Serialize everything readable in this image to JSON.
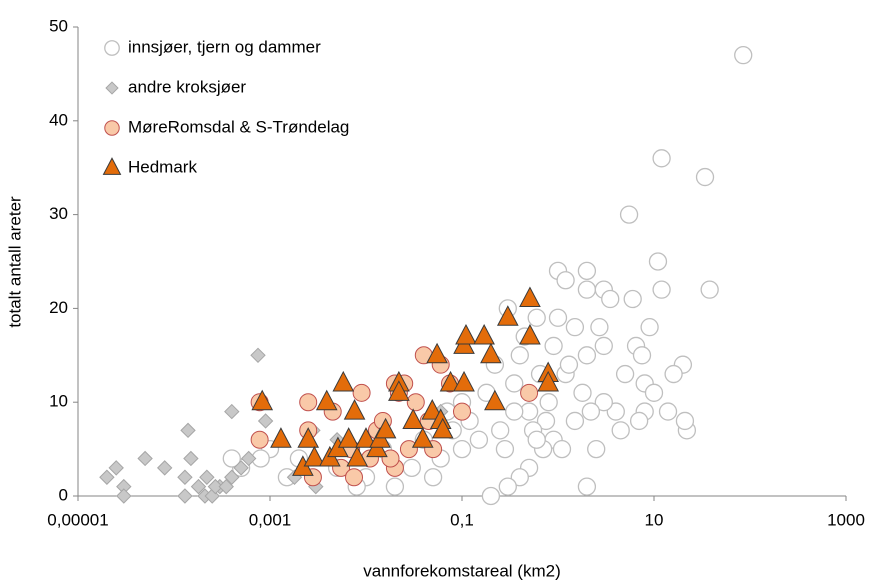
{
  "chart_data": {
    "type": "scatter",
    "xlabel": "vannforekomstareal (km2)",
    "ylabel": "totalt antall areter",
    "xscale": "log",
    "xlim": [
      1e-05,
      1000
    ],
    "xticks": [
      {
        "value": 1e-05,
        "label": "0,00001"
      },
      {
        "value": 0.001,
        "label": "0,001"
      },
      {
        "value": 0.1,
        "label": "0,1"
      },
      10,
      1000
    ],
    "ylim": [
      0,
      50
    ],
    "yticks": [
      0,
      10,
      20,
      30,
      40,
      50
    ],
    "legend": "upper left",
    "series": [
      {
        "name": "innsjøer, tjern og dammer",
        "marker": "circle-open",
        "color": "#bfbfbf",
        "x": [
          85,
          12,
          34,
          38,
          5.5,
          11,
          12,
          20,
          22,
          21,
          16,
          14,
          2,
          2,
          1,
          1.2,
          3,
          3.5,
          2.7,
          6,
          6.5,
          7.5,
          8,
          9,
          4,
          5,
          3,
          2.5,
          2,
          3,
          2,
          1.5,
          1,
          0.6,
          0.4,
          0.3,
          0.5,
          0.8,
          1.2,
          1.5,
          0.9,
          0.7,
          0.5,
          0.4,
          0.3,
          0.2,
          0.25,
          0.15,
          0.12,
          0.1,
          0.08,
          0.06,
          0.05,
          0.04,
          0.03,
          0.02,
          0.015,
          0.01,
          0.008,
          0.005,
          0.002,
          0.0015,
          0.001,
          0.0008,
          0.0005,
          0.0004,
          0.18,
          0.22,
          0.35,
          0.45,
          0.65,
          0.9,
          1.3,
          1.8,
          2.2,
          4.5,
          0.1,
          0.07,
          0.75,
          1.1,
          0.55,
          0.35,
          0.28,
          0.6,
          8,
          7,
          10
        ],
        "values": [
          47,
          36,
          34,
          22,
          30,
          25,
          22,
          14,
          7,
          8,
          13,
          9,
          24,
          22,
          24,
          23,
          22,
          21,
          18,
          21,
          16,
          15,
          12,
          18,
          9,
          13,
          10,
          5,
          1,
          16,
          15,
          18,
          19,
          19,
          15,
          20,
          9,
          10,
          13,
          8,
          6,
          5,
          3,
          2,
          1,
          0,
          7,
          6,
          8,
          5,
          7,
          4,
          2,
          6,
          3,
          1,
          5,
          2,
          1,
          3,
          4,
          2,
          5,
          4,
          3,
          4,
          11,
          14,
          12,
          17,
          13,
          16,
          14,
          11,
          9,
          7,
          10,
          9,
          8,
          5,
          7,
          9,
          5,
          6,
          9,
          8,
          11
        ]
      },
      {
        "name": "andre kroksjøer",
        "marker": "diamond",
        "color": "#c8c8c8",
        "x": [
          2e-05,
          2.5e-05,
          3e-05,
          3e-05,
          5e-05,
          8e-05,
          0.00013,
          0.00013,
          0.00015,
          0.00014,
          0.00018,
          0.00021,
          0.00025,
          0.0003,
          0.0004,
          0.0005,
          0.0004,
          0.00075,
          0.0009,
          0.0018,
          0.0028,
          0.003,
          0.005,
          0.06,
          0.00022,
          0.00027,
          0.00035,
          0.0006
        ],
        "values": [
          2,
          3,
          1,
          0,
          4,
          3,
          0,
          2,
          4,
          7,
          1,
          0,
          0,
          1,
          2,
          3,
          9,
          15,
          8,
          2,
          7,
          1,
          6,
          9,
          2,
          1,
          1,
          4
        ]
      },
      {
        "name": "MøreRomsdal & S-Trøndelag",
        "marker": "circle",
        "color": "#f9c9a8",
        "x": [
          0.00078,
          0.00078,
          0.0025,
          0.0025,
          0.0028,
          0.0045,
          0.0055,
          0.007,
          0.0075,
          0.009,
          0.011,
          0.013,
          0.015,
          0.02,
          0.02,
          0.025,
          0.028,
          0.033,
          0.04,
          0.05,
          0.06,
          0.075,
          0.1,
          0.5,
          0.022,
          0.018,
          0.045
        ],
        "values": [
          10,
          6,
          10,
          7,
          2,
          9,
          3,
          5,
          2,
          11,
          4,
          7,
          8,
          12,
          3,
          12,
          5,
          10,
          15,
          5,
          14,
          12,
          9,
          11,
          11,
          4,
          8
        ]
      },
      {
        "name": "Hedmark",
        "marker": "triangle",
        "color": "#e36c0a",
        "x": [
          0.00083,
          0.0013,
          0.0022,
          0.0025,
          0.0029,
          0.0039,
          0.0042,
          0.0051,
          0.0058,
          0.0066,
          0.0076,
          0.0081,
          0.01,
          0.013,
          0.014,
          0.016,
          0.022,
          0.022,
          0.031,
          0.039,
          0.049,
          0.06,
          0.063,
          0.055,
          0.076,
          0.105,
          0.105,
          0.11,
          0.17,
          0.2,
          0.22,
          0.3,
          0.51,
          0.51,
          0.79,
          0.79
        ],
        "values": [
          10,
          6,
          3,
          6,
          4,
          10,
          4,
          5,
          12,
          6,
          9,
          4,
          6,
          5,
          6,
          7,
          12,
          11,
          8,
          6,
          9,
          8,
          7,
          15,
          12,
          12,
          16,
          17,
          17,
          15,
          10,
          19,
          21,
          17,
          13,
          12
        ]
      }
    ]
  }
}
